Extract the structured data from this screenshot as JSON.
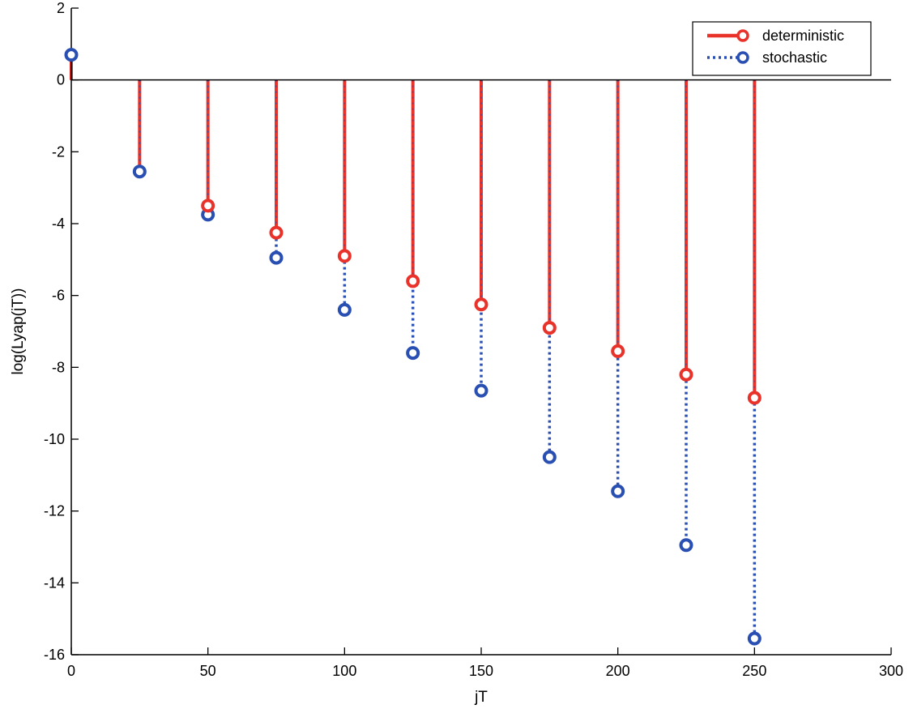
{
  "chart_data": {
    "type": "stem",
    "xlabel": "jT",
    "ylabel": "log(Lyap(jT))",
    "xlim": [
      0,
      300
    ],
    "ylim": [
      -16,
      2
    ],
    "xticks": [
      0,
      50,
      100,
      150,
      200,
      250,
      300
    ],
    "yticks": [
      2,
      0,
      -2,
      -4,
      -6,
      -8,
      -10,
      -12,
      -14,
      -16
    ],
    "grid": false,
    "legend_position": "top-right",
    "x": [
      0,
      25,
      50,
      75,
      100,
      125,
      150,
      175,
      200,
      225,
      250
    ],
    "series": [
      {
        "name": "deterministic",
        "color": "#e8322a",
        "line_style": "solid",
        "marker": "circle",
        "values": [
          0.7,
          -2.55,
          -3.5,
          -4.25,
          -4.9,
          -5.6,
          -6.25,
          -6.9,
          -7.55,
          -8.2,
          -8.85
        ]
      },
      {
        "name": "stochastic",
        "color": "#2a4fb3",
        "line_style": "dotted",
        "marker": "circle",
        "values": [
          0.7,
          -2.55,
          -3.75,
          -4.95,
          -6.4,
          -7.6,
          -8.65,
          -10.5,
          -11.45,
          -12.95,
          -15.55
        ]
      }
    ]
  }
}
